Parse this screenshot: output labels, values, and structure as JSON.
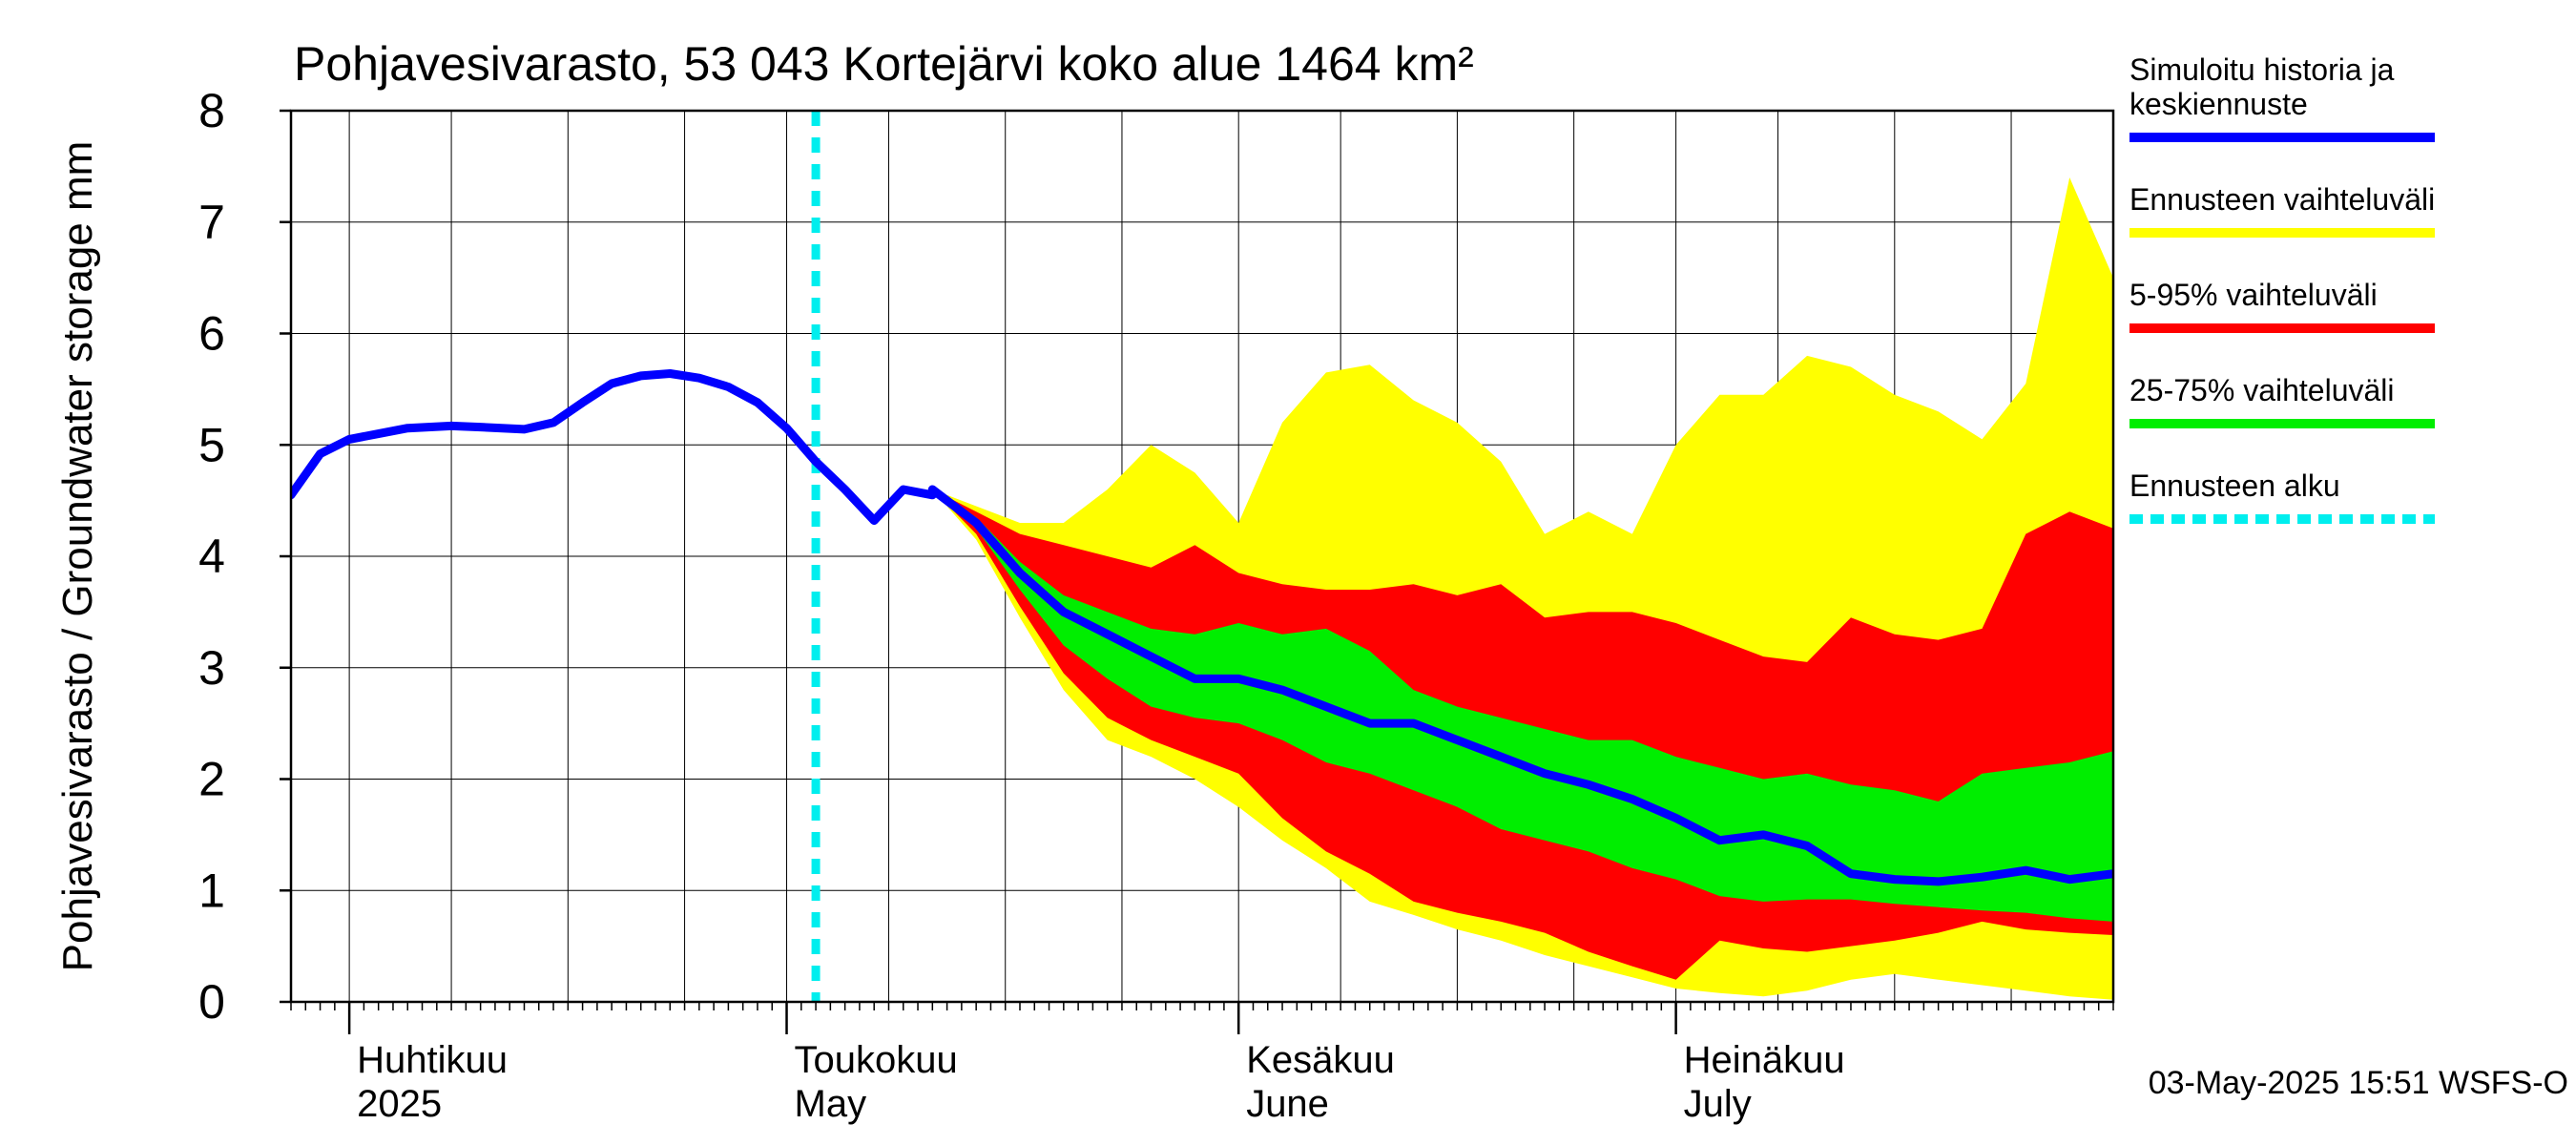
{
  "chart_data": {
    "type": "area",
    "title": "Pohjavesivarasto, 53 043 Kortejärvi koko alue 1464 km²",
    "ylabel": "Pohjavesivarasto / Groundwater storage   mm",
    "ylim": [
      0,
      8
    ],
    "yticks": [
      0,
      1,
      2,
      3,
      4,
      5,
      6,
      7,
      8
    ],
    "xlim": [
      "2025-03-28",
      "2025-07-31"
    ],
    "grid": true,
    "legend_position": "right",
    "forecast_start": "2025-05-03",
    "footer": "03-May-2025 15:51 WSFS-O",
    "month_labels": [
      {
        "date": "2025-04-01",
        "line1": "Huhtikuu",
        "line2": "2025"
      },
      {
        "date": "2025-05-01",
        "line1": "Toukokuu",
        "line2": "May"
      },
      {
        "date": "2025-06-01",
        "line1": "Kesäkuu",
        "line2": "June"
      },
      {
        "date": "2025-07-01",
        "line1": "Heinäkuu",
        "line2": "July"
      }
    ],
    "legend": [
      {
        "key": "median",
        "label": "Simuloitu historia ja keskiennuste",
        "lines": [
          "Simuloitu historia ja",
          "keskiennuste"
        ],
        "color": "#0000ff",
        "style": "solid"
      },
      {
        "key": "range",
        "label": "Ennusteen vaihteluväli",
        "lines": [
          "Ennusteen vaihteluväli"
        ],
        "color": "#ffff00",
        "style": "solid"
      },
      {
        "key": "p5_95",
        "label": "5-95% vaihteluväli",
        "lines": [
          "5-95% vaihteluväli"
        ],
        "color": "#ff0000",
        "style": "solid"
      },
      {
        "key": "p25_75",
        "label": "25-75% vaihteluväli",
        "lines": [
          "25-75% vaihteluväli"
        ],
        "color": "#00ee00",
        "style": "solid"
      },
      {
        "key": "start",
        "label": "Ennusteen alku",
        "lines": [
          "Ennusteen alku"
        ],
        "color": "#00eeee",
        "style": "dashed"
      }
    ],
    "history": [
      [
        "2025-03-28",
        4.55
      ],
      [
        "2025-03-30",
        4.92
      ],
      [
        "2025-04-01",
        5.05
      ],
      [
        "2025-04-03",
        5.1
      ],
      [
        "2025-04-05",
        5.15
      ],
      [
        "2025-04-08",
        5.17
      ],
      [
        "2025-04-10",
        5.16
      ],
      [
        "2025-04-13",
        5.14
      ],
      [
        "2025-04-15",
        5.2
      ],
      [
        "2025-04-17",
        5.38
      ],
      [
        "2025-04-19",
        5.55
      ],
      [
        "2025-04-21",
        5.62
      ],
      [
        "2025-04-23",
        5.64
      ],
      [
        "2025-04-25",
        5.6
      ],
      [
        "2025-04-27",
        5.52
      ],
      [
        "2025-04-29",
        5.38
      ],
      [
        "2025-05-01",
        5.15
      ],
      [
        "2025-05-03",
        4.85
      ],
      [
        "2025-05-05",
        4.6
      ],
      [
        "2025-05-07",
        4.32
      ],
      [
        "2025-05-09",
        4.6
      ],
      [
        "2025-05-11",
        4.55
      ]
    ],
    "forecast_dates": [
      "2025-05-11",
      "2025-05-14",
      "2025-05-17",
      "2025-05-20",
      "2025-05-23",
      "2025-05-26",
      "2025-05-29",
      "2025-06-01",
      "2025-06-04",
      "2025-06-07",
      "2025-06-10",
      "2025-06-13",
      "2025-06-16",
      "2025-06-19",
      "2025-06-22",
      "2025-06-25",
      "2025-06-28",
      "2025-07-01",
      "2025-07-04",
      "2025-07-07",
      "2025-07-10",
      "2025-07-13",
      "2025-07-16",
      "2025-07-19",
      "2025-07-22",
      "2025-07-25",
      "2025-07-28",
      "2025-07-31"
    ],
    "range_upper": [
      4.6,
      4.45,
      4.3,
      4.3,
      4.6,
      5.0,
      4.75,
      4.3,
      5.2,
      5.65,
      5.72,
      5.4,
      5.2,
      4.85,
      4.2,
      4.4,
      4.2,
      5.0,
      5.45,
      5.45,
      5.8,
      5.7,
      5.45,
      5.3,
      5.05,
      5.55,
      7.4,
      6.5
    ],
    "p95": [
      4.6,
      4.4,
      4.2,
      4.1,
      4.0,
      3.9,
      4.1,
      3.85,
      3.75,
      3.7,
      3.7,
      3.75,
      3.65,
      3.75,
      3.45,
      3.5,
      3.5,
      3.4,
      3.25,
      3.1,
      3.05,
      3.45,
      3.3,
      3.25,
      3.35,
      4.2,
      4.4,
      4.25
    ],
    "p75": [
      4.6,
      4.35,
      3.95,
      3.65,
      3.5,
      3.35,
      3.3,
      3.4,
      3.3,
      3.35,
      3.15,
      2.8,
      2.65,
      2.55,
      2.45,
      2.35,
      2.35,
      2.2,
      2.1,
      2.0,
      2.05,
      1.95,
      1.9,
      1.8,
      2.05,
      2.1,
      2.15,
      2.25
    ],
    "median": [
      4.6,
      4.3,
      3.85,
      3.5,
      3.3,
      3.1,
      2.9,
      2.9,
      2.8,
      2.65,
      2.5,
      2.5,
      2.35,
      2.2,
      2.05,
      1.95,
      1.82,
      1.65,
      1.45,
      1.5,
      1.4,
      1.15,
      1.1,
      1.08,
      1.12,
      1.18,
      1.1,
      1.15
    ],
    "p25": [
      4.6,
      4.25,
      3.7,
      3.2,
      2.9,
      2.65,
      2.55,
      2.5,
      2.35,
      2.15,
      2.05,
      1.9,
      1.75,
      1.55,
      1.45,
      1.35,
      1.2,
      1.1,
      0.95,
      0.9,
      0.92,
      0.92,
      0.88,
      0.85,
      0.82,
      0.8,
      0.75,
      0.72
    ],
    "p5": [
      4.6,
      4.2,
      3.55,
      2.95,
      2.55,
      2.35,
      2.2,
      2.05,
      1.65,
      1.35,
      1.15,
      0.9,
      0.8,
      0.72,
      0.62,
      0.45,
      0.32,
      0.2,
      0.55,
      0.48,
      0.45,
      0.5,
      0.55,
      0.62,
      0.72,
      0.65,
      0.62,
      0.6
    ],
    "range_lower": [
      4.6,
      4.15,
      3.45,
      2.8,
      2.35,
      2.2,
      2.0,
      1.75,
      1.45,
      1.2,
      0.9,
      0.78,
      0.65,
      0.55,
      0.42,
      0.32,
      0.22,
      0.12,
      0.08,
      0.05,
      0.1,
      0.2,
      0.25,
      0.2,
      0.15,
      0.1,
      0.05,
      0.02
    ]
  }
}
